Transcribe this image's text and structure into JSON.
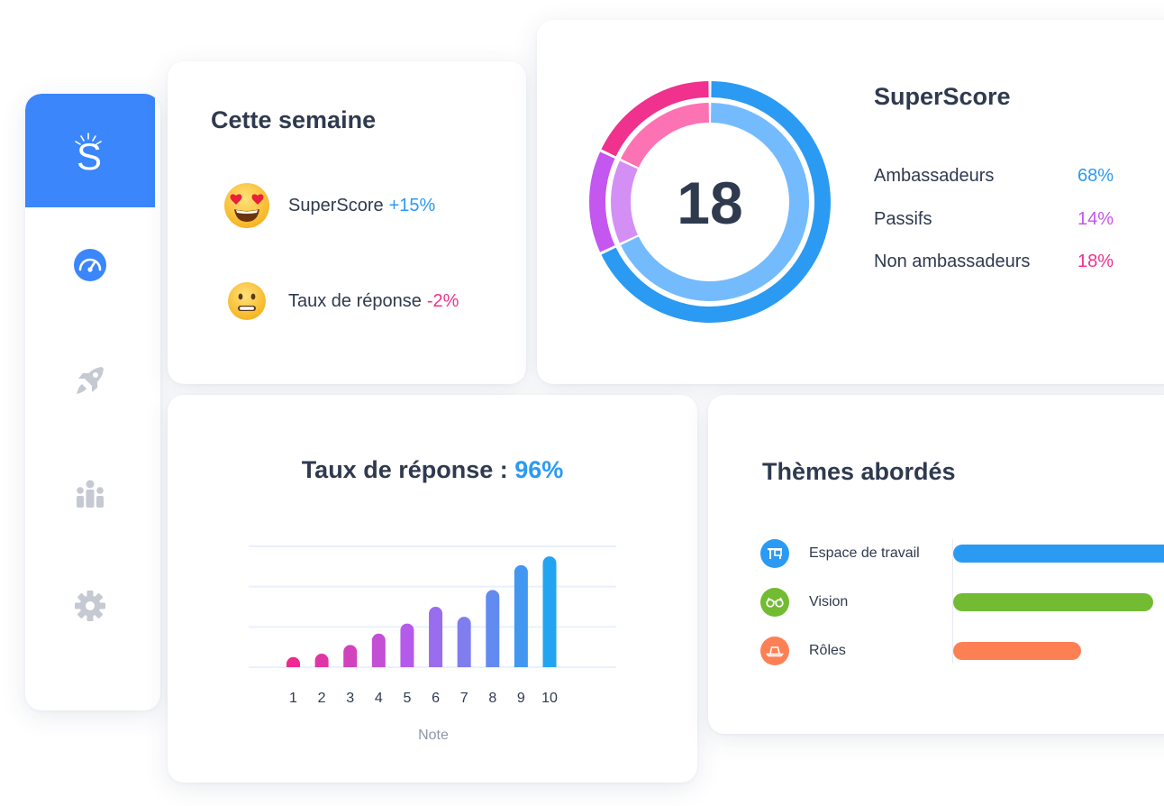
{
  "sidebar": {
    "logo_letter": "S",
    "logo_color": "#3a86fa",
    "icons": [
      "speedometer-icon",
      "rocket-icon",
      "team-icon",
      "gear-icon"
    ],
    "active_icon_color": "#3a86fa",
    "inactive_icon_color": "#c5c9d2"
  },
  "week": {
    "title": "Cette semaine",
    "metrics": [
      {
        "emoji": "heart-eyes-emoji",
        "label": "SuperScore",
        "value": "+15%",
        "color": "#2b9af3"
      },
      {
        "emoji": "neutral-face-emoji",
        "label": "Taux de réponse",
        "value": "-2%",
        "color": "#f0318e"
      }
    ]
  },
  "superscore": {
    "title": "SuperScore",
    "score": "18",
    "legend": [
      {
        "label": "Ambassadeurs",
        "value": "68%",
        "color": "#2b9af3"
      },
      {
        "label": "Passifs",
        "value": "14%",
        "color": "#c357f0"
      },
      {
        "label": "Non ambassadeurs",
        "value": "18%",
        "color": "#f0318e"
      }
    ]
  },
  "response": {
    "title_prefix": "Taux de réponse : ",
    "title_value": "96%",
    "title_value_color": "#2b9af3",
    "chart_data": {
      "type": "bar",
      "categories": [
        "1",
        "2",
        "3",
        "4",
        "5",
        "6",
        "7",
        "8",
        "9",
        "10"
      ],
      "values": [
        1,
        2,
        3.3,
        5,
        6.5,
        9,
        7.5,
        11.5,
        15.2,
        16.5
      ],
      "ylim": [
        0,
        18
      ],
      "xlabel": "Note",
      "grid": true
    }
  },
  "themes": {
    "title": "Thèmes abordés",
    "items": [
      {
        "label": "Espace de travail",
        "icon": "desk-icon",
        "color": "#2b9af3",
        "value": 1.0
      },
      {
        "label": "Vision",
        "icon": "glasses-icon",
        "color": "#72bb32",
        "value": 0.83
      },
      {
        "label": "Rôles",
        "icon": "hat-icon",
        "color": "#fd8055",
        "value": 0.53
      }
    ]
  }
}
